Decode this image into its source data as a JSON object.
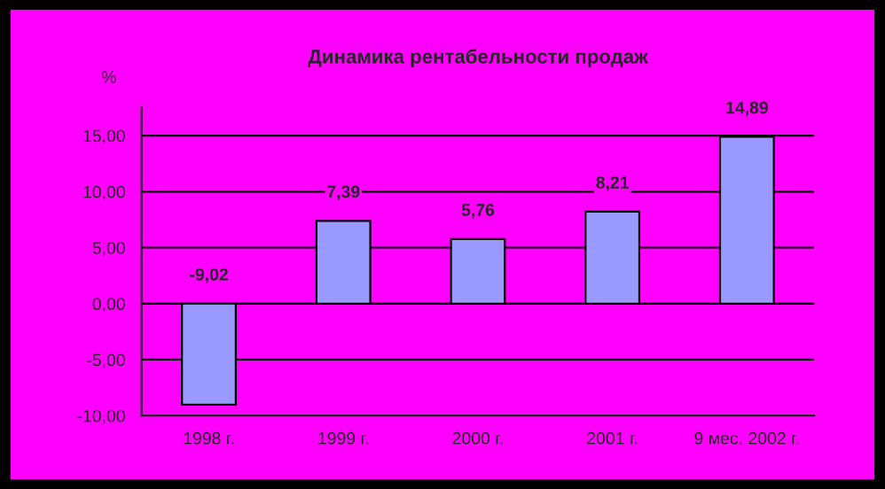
{
  "chart_data": {
    "type": "bar",
    "title": "Динамика рентабельности продаж",
    "ylabel": "%",
    "categories": [
      "1998 г.",
      "1999 г.",
      "2000 г.",
      "2001 г.",
      "9 мес. 2002 г."
    ],
    "values": [
      -9.02,
      7.39,
      5.76,
      8.21,
      14.89
    ],
    "value_labels": [
      "-9,02",
      "7,39",
      "5,76",
      "8,21",
      "14,89"
    ],
    "color": "#9999ff",
    "ylim": [
      -10,
      17.5
    ],
    "yticks": [
      {
        "value": -10,
        "label": "-10,00"
      },
      {
        "value": -5,
        "label": "-5,00"
      },
      {
        "value": 0,
        "label": "0,00"
      },
      {
        "value": 5,
        "label": "5,00"
      },
      {
        "value": 10,
        "label": "10,00"
      },
      {
        "value": 15,
        "label": "15,00"
      }
    ],
    "grid": "y",
    "legend": false
  }
}
